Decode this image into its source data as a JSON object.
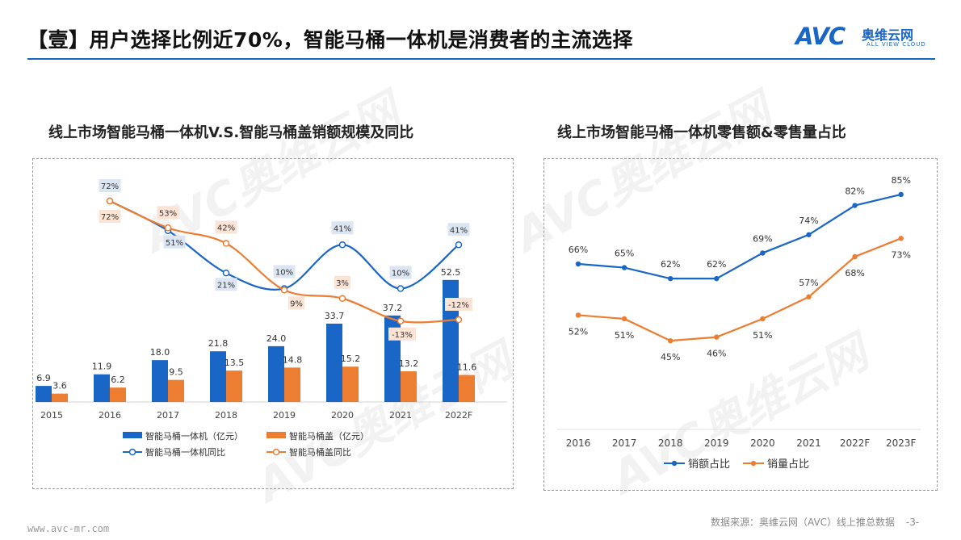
{
  "header": {
    "title": "【壹】用户选择比例近70%，智能马桶一体机是消费者的主流选择",
    "logo_text": "AVC",
    "logo_cn": "奥维云网",
    "logo_en": "ALL VIEW CLOUD"
  },
  "footer": {
    "website": "www.avc-mr.com",
    "source": "数据来源：奥维云网（AVC）线上推总数据",
    "page": "-3-"
  },
  "watermark": "AVC奥维云网",
  "colors": {
    "blue": "#1a66c7",
    "orange": "#ed7d31"
  },
  "chart_data": [
    {
      "type": "bar",
      "title": "线上市场智能马桶一体机V.S.智能马桶盖销额规模及同比",
      "categories": [
        "2015",
        "2016",
        "2017",
        "2018",
        "2019",
        "2020",
        "2021",
        "2022F"
      ],
      "series": [
        {
          "name": "智能马桶一体机（亿元）",
          "type": "bar",
          "color": "#1a66c7",
          "values": [
            6.9,
            11.9,
            18.0,
            21.8,
            24.0,
            33.7,
            37.2,
            52.5
          ],
          "labels": [
            "6.9",
            "11.9",
            "18.0",
            "21.8",
            "24.0",
            "33.7",
            "37.2",
            "52.5"
          ]
        },
        {
          "name": "智能马桶盖（亿元）",
          "type": "bar",
          "color": "#ed7d31",
          "values": [
            3.6,
            6.2,
            9.5,
            13.5,
            14.8,
            15.2,
            13.2,
            11.6
          ],
          "labels": [
            "3.6",
            "6.2",
            "9.5",
            "13.5",
            "14.8",
            "15.2",
            "13.2",
            "11.6"
          ]
        },
        {
          "name": "智能马桶一体机同比",
          "type": "line",
          "color": "#1a66c7",
          "values": [
            null,
            72,
            51,
            21,
            10,
            41,
            10,
            41
          ],
          "labels": [
            "",
            "72%",
            "51%",
            "21%",
            "10%",
            "41%",
            "10%",
            "41%"
          ]
        },
        {
          "name": "智能马桶盖同比",
          "type": "line",
          "color": "#ed7d31",
          "values": [
            null,
            72,
            53,
            42,
            9,
            3,
            -13,
            -12
          ],
          "labels": [
            "",
            "72%",
            "53%",
            "42%",
            "9%",
            "3%",
            "-13%",
            "-12%"
          ]
        }
      ],
      "legend": "bottom"
    },
    {
      "type": "line",
      "title": "线上市场智能马桶一体机零售额&零售量占比",
      "categories": [
        "2016",
        "2017",
        "2018",
        "2019",
        "2020",
        "2021",
        "2022F",
        "2023F"
      ],
      "series": [
        {
          "name": "销额占比",
          "color": "#1a66c7",
          "values": [
            66,
            65,
            62,
            62,
            69,
            74,
            82,
            85
          ],
          "labels": [
            "66%",
            "65%",
            "62%",
            "62%",
            "69%",
            "74%",
            "82%",
            "85%"
          ]
        },
        {
          "name": "销量占比",
          "color": "#ed7d31",
          "values": [
            52,
            51,
            45,
            46,
            51,
            57,
            68,
            73
          ],
          "labels": [
            "52%",
            "51%",
            "45%",
            "46%",
            "51%",
            "57%",
            "68%",
            "73%"
          ]
        }
      ],
      "legend": "bottom"
    }
  ]
}
